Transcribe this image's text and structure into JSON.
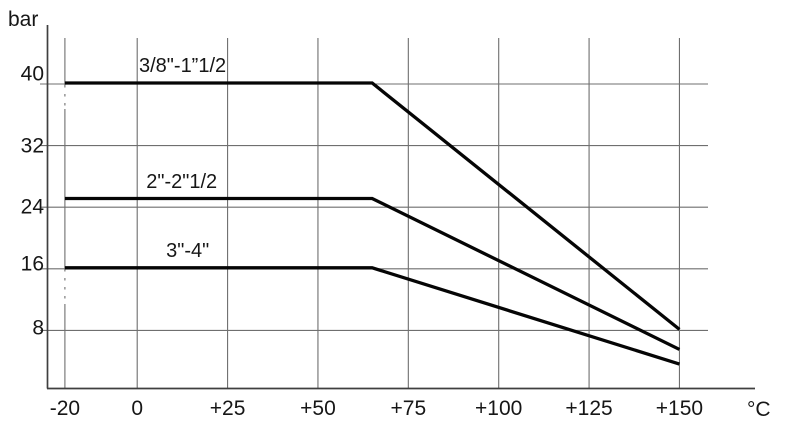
{
  "page": {
    "background": "#ffffff"
  },
  "chart": {
    "ylabel": "bar",
    "xlabel": "°C"
  },
  "chart_data": {
    "type": "line",
    "xlabel": "°C",
    "ylabel": "bar",
    "xlim": [
      -20,
      150
    ],
    "ylim": [
      0,
      44
    ],
    "grid": true,
    "legend_position": "inline-above-lines",
    "x_ticks": [
      {
        "value": -20,
        "label": "-20"
      },
      {
        "value": 0,
        "label": "0"
      },
      {
        "value": 25,
        "label": "+25"
      },
      {
        "value": 50,
        "label": "+50"
      },
      {
        "value": 75,
        "label": "+75"
      },
      {
        "value": 100,
        "label": "+100"
      },
      {
        "value": 125,
        "label": "+125"
      },
      {
        "value": 150,
        "label": "+150"
      }
    ],
    "y_ticks": [
      {
        "value": 8,
        "label": "8"
      },
      {
        "value": 16,
        "label": "16"
      },
      {
        "value": 24,
        "label": "24"
      },
      {
        "value": 32,
        "label": "32"
      },
      {
        "value": 40,
        "label": "40"
      }
    ],
    "series": [
      {
        "name": "3/8\"-1”1/2",
        "points": [
          [
            -20,
            40
          ],
          [
            65,
            40
          ],
          [
            150,
            8
          ]
        ],
        "label_x": 0.5
      },
      {
        "name": "2\"-2\"1/2",
        "points": [
          [
            -20,
            25
          ],
          [
            65,
            25
          ],
          [
            150,
            5.4
          ]
        ],
        "label_x": 2.5
      },
      {
        "name": "3\"-4\"",
        "points": [
          [
            -20,
            16
          ],
          [
            65,
            16
          ],
          [
            150,
            3.5
          ]
        ],
        "label_x": 8
      }
    ],
    "colors": {
      "grid": "#6f6f6f",
      "axis": "#3f3f3f",
      "curve": "#050505",
      "text": "#161616",
      "background": "#ffffff"
    }
  }
}
